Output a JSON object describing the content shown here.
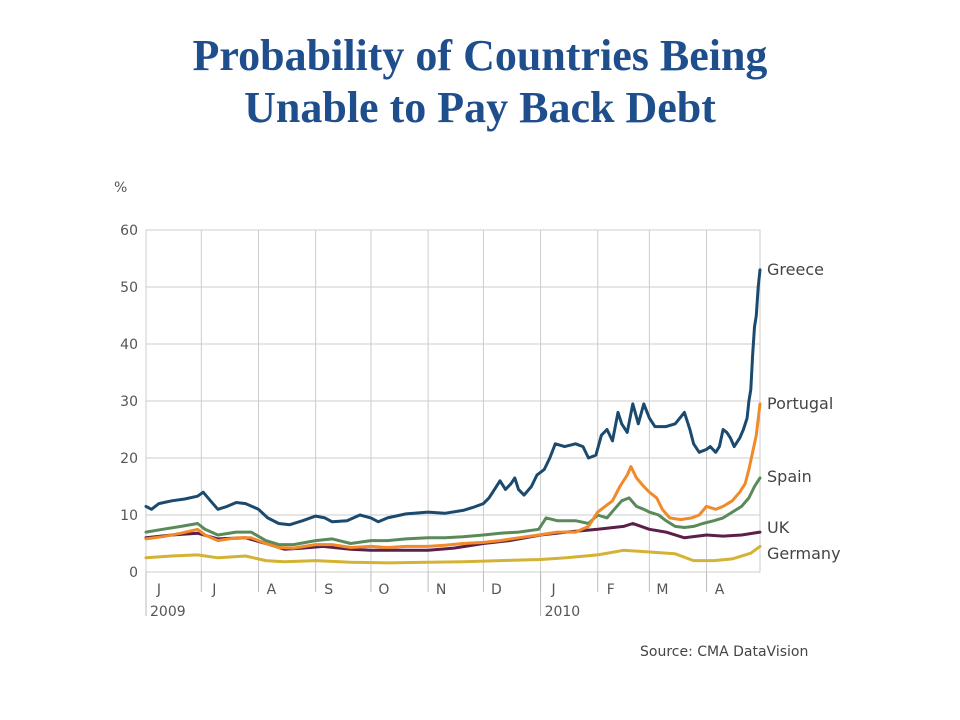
{
  "title": {
    "line1": "Probability of Countries Being",
    "line2": "Unable to Pay Back Debt"
  },
  "source": "Source: CMA DataVision",
  "chart_data": {
    "type": "line",
    "ylabel": "%",
    "ylim": [
      0,
      60
    ],
    "yticks": [
      0,
      10,
      20,
      30,
      40,
      50,
      60
    ],
    "xlim": [
      "2009-06-01",
      "2010-04-30"
    ],
    "xticks": [
      {
        "date": "2009-06-01",
        "label": "J"
      },
      {
        "date": "2009-07-01",
        "label": "J"
      },
      {
        "date": "2009-08-01",
        "label": "A"
      },
      {
        "date": "2009-09-01",
        "label": "S"
      },
      {
        "date": "2009-10-01",
        "label": "O"
      },
      {
        "date": "2009-11-01",
        "label": "N"
      },
      {
        "date": "2009-12-01",
        "label": "D"
      },
      {
        "date": "2010-01-01",
        "label": "J"
      },
      {
        "date": "2010-02-01",
        "label": "F"
      },
      {
        "date": "2010-03-01",
        "label": "M"
      },
      {
        "date": "2010-04-01",
        "label": "A"
      }
    ],
    "year_labels": [
      {
        "date": "2009-06-01",
        "label": "2009"
      },
      {
        "date": "2010-01-01",
        "label": "2010"
      }
    ],
    "grid": true,
    "legend": "labels at right end of lines",
    "series": [
      {
        "name": "Greece",
        "color": "#1b4a6e",
        "points": [
          [
            "2009-06-01",
            11.5
          ],
          [
            "2009-06-04",
            11
          ],
          [
            "2009-06-08",
            12
          ],
          [
            "2009-06-15",
            12.5
          ],
          [
            "2009-06-22",
            12.8
          ],
          [
            "2009-06-29",
            13.3
          ],
          [
            "2009-07-02",
            14
          ],
          [
            "2009-07-06",
            12.5
          ],
          [
            "2009-07-10",
            11
          ],
          [
            "2009-07-15",
            11.5
          ],
          [
            "2009-07-20",
            12.2
          ],
          [
            "2009-07-25",
            12
          ],
          [
            "2009-08-01",
            11
          ],
          [
            "2009-08-06",
            9.5
          ],
          [
            "2009-08-12",
            8.5
          ],
          [
            "2009-08-18",
            8.3
          ],
          [
            "2009-08-25",
            9
          ],
          [
            "2009-09-01",
            9.8
          ],
          [
            "2009-09-06",
            9.5
          ],
          [
            "2009-09-10",
            8.8
          ],
          [
            "2009-09-18",
            9
          ],
          [
            "2009-09-25",
            10
          ],
          [
            "2009-10-01",
            9.5
          ],
          [
            "2009-10-05",
            8.8
          ],
          [
            "2009-10-10",
            9.5
          ],
          [
            "2009-10-20",
            10.2
          ],
          [
            "2009-11-01",
            10.5
          ],
          [
            "2009-11-10",
            10.3
          ],
          [
            "2009-11-20",
            10.8
          ],
          [
            "2009-11-25",
            11.3
          ],
          [
            "2009-12-01",
            12
          ],
          [
            "2009-12-04",
            13
          ],
          [
            "2009-12-07",
            14.5
          ],
          [
            "2009-12-10",
            16
          ],
          [
            "2009-12-13",
            14.5
          ],
          [
            "2009-12-16",
            15.5
          ],
          [
            "2009-12-18",
            16.5
          ],
          [
            "2009-12-20",
            14.5
          ],
          [
            "2009-12-23",
            13.5
          ],
          [
            "2009-12-27",
            15
          ],
          [
            "2009-12-30",
            17
          ],
          [
            "2010-01-03",
            18
          ],
          [
            "2010-01-06",
            20
          ],
          [
            "2010-01-09",
            22.5
          ],
          [
            "2010-01-14",
            22
          ],
          [
            "2010-01-20",
            22.5
          ],
          [
            "2010-01-24",
            22
          ],
          [
            "2010-01-27",
            20
          ],
          [
            "2010-01-31",
            20.5
          ],
          [
            "2010-02-03",
            24
          ],
          [
            "2010-02-06",
            25
          ],
          [
            "2010-02-09",
            23
          ],
          [
            "2010-02-12",
            28
          ],
          [
            "2010-02-14",
            26
          ],
          [
            "2010-02-17",
            24.5
          ],
          [
            "2010-02-20",
            29.5
          ],
          [
            "2010-02-23",
            26
          ],
          [
            "2010-02-26",
            29.5
          ],
          [
            "2010-03-01",
            27
          ],
          [
            "2010-03-04",
            25.5
          ],
          [
            "2010-03-10",
            25.5
          ],
          [
            "2010-03-15",
            26
          ],
          [
            "2010-03-20",
            28
          ],
          [
            "2010-03-23",
            25
          ],
          [
            "2010-03-25",
            22.5
          ],
          [
            "2010-03-28",
            21
          ],
          [
            "2010-04-01",
            21.5
          ],
          [
            "2010-04-03",
            22
          ],
          [
            "2010-04-06",
            21
          ],
          [
            "2010-04-08",
            22
          ],
          [
            "2010-04-10",
            25
          ],
          [
            "2010-04-12",
            24.5
          ],
          [
            "2010-04-14",
            23.5
          ],
          [
            "2010-04-16",
            22
          ],
          [
            "2010-04-19",
            23.5
          ],
          [
            "2010-04-21",
            25
          ],
          [
            "2010-04-23",
            27
          ],
          [
            "2010-04-24",
            30
          ],
          [
            "2010-04-25",
            32
          ],
          [
            "2010-04-26",
            38
          ],
          [
            "2010-04-27",
            43
          ],
          [
            "2010-04-28",
            45
          ],
          [
            "2010-04-29",
            50
          ],
          [
            "2010-04-30",
            53
          ]
        ]
      },
      {
        "name": "Portugal",
        "color": "#f08a2a",
        "points": [
          [
            "2009-06-01",
            5.8
          ],
          [
            "2009-06-10",
            6.2
          ],
          [
            "2009-06-20",
            6.8
          ],
          [
            "2009-06-29",
            7.5
          ],
          [
            "2009-07-03",
            6.5
          ],
          [
            "2009-07-10",
            5.5
          ],
          [
            "2009-07-20",
            6
          ],
          [
            "2009-07-28",
            6
          ],
          [
            "2009-08-05",
            5
          ],
          [
            "2009-08-12",
            4.3
          ],
          [
            "2009-08-20",
            4.2
          ],
          [
            "2009-09-01",
            4.8
          ],
          [
            "2009-09-10",
            4.8
          ],
          [
            "2009-09-20",
            4.3
          ],
          [
            "2009-10-01",
            4.5
          ],
          [
            "2009-10-10",
            4.3
          ],
          [
            "2009-10-20",
            4.5
          ],
          [
            "2009-11-01",
            4.5
          ],
          [
            "2009-11-10",
            4.7
          ],
          [
            "2009-11-20",
            5
          ],
          [
            "2009-12-01",
            5.2
          ],
          [
            "2009-12-10",
            5.5
          ],
          [
            "2009-12-20",
            6
          ],
          [
            "2009-12-31",
            6.5
          ],
          [
            "2010-01-10",
            7
          ],
          [
            "2010-01-20",
            7
          ],
          [
            "2010-01-27",
            8
          ],
          [
            "2010-02-01",
            10.5
          ],
          [
            "2010-02-05",
            11.5
          ],
          [
            "2010-02-09",
            12.5
          ],
          [
            "2010-02-13",
            15
          ],
          [
            "2010-02-17",
            17
          ],
          [
            "2010-02-19",
            18.5
          ],
          [
            "2010-02-22",
            16.5
          ],
          [
            "2010-02-26",
            15
          ],
          [
            "2010-03-01",
            14
          ],
          [
            "2010-03-05",
            13
          ],
          [
            "2010-03-08",
            11
          ],
          [
            "2010-03-12",
            9.5
          ],
          [
            "2010-03-18",
            9.2
          ],
          [
            "2010-03-24",
            9.5
          ],
          [
            "2010-03-28",
            10
          ],
          [
            "2010-04-01",
            11.5
          ],
          [
            "2010-04-06",
            11
          ],
          [
            "2010-04-10",
            11.5
          ],
          [
            "2010-04-15",
            12.5
          ],
          [
            "2010-04-19",
            14
          ],
          [
            "2010-04-22",
            15.5
          ],
          [
            "2010-04-24",
            18
          ],
          [
            "2010-04-26",
            21
          ],
          [
            "2010-04-28",
            24
          ],
          [
            "2010-04-30",
            29.5
          ]
        ]
      },
      {
        "name": "Spain",
        "color": "#5a8a5a",
        "points": [
          [
            "2009-06-01",
            7
          ],
          [
            "2009-06-10",
            7.5
          ],
          [
            "2009-06-20",
            8
          ],
          [
            "2009-06-29",
            8.5
          ],
          [
            "2009-07-03",
            7.5
          ],
          [
            "2009-07-10",
            6.5
          ],
          [
            "2009-07-20",
            7
          ],
          [
            "2009-07-28",
            7
          ],
          [
            "2009-08-05",
            5.5
          ],
          [
            "2009-08-12",
            4.8
          ],
          [
            "2009-08-20",
            4.8
          ],
          [
            "2009-09-01",
            5.5
          ],
          [
            "2009-09-10",
            5.8
          ],
          [
            "2009-09-20",
            5
          ],
          [
            "2009-10-01",
            5.5
          ],
          [
            "2009-10-10",
            5.5
          ],
          [
            "2009-10-20",
            5.8
          ],
          [
            "2009-11-01",
            6
          ],
          [
            "2009-11-10",
            6
          ],
          [
            "2009-11-20",
            6.2
          ],
          [
            "2009-12-01",
            6.5
          ],
          [
            "2009-12-10",
            6.8
          ],
          [
            "2009-12-20",
            7
          ],
          [
            "2009-12-31",
            7.5
          ],
          [
            "2010-01-04",
            9.5
          ],
          [
            "2010-01-10",
            9
          ],
          [
            "2010-01-20",
            9
          ],
          [
            "2010-01-27",
            8.5
          ],
          [
            "2010-02-01",
            10
          ],
          [
            "2010-02-06",
            9.5
          ],
          [
            "2010-02-10",
            11
          ],
          [
            "2010-02-14",
            12.5
          ],
          [
            "2010-02-18",
            13
          ],
          [
            "2010-02-22",
            11.5
          ],
          [
            "2010-02-26",
            11
          ],
          [
            "2010-03-01",
            10.5
          ],
          [
            "2010-03-06",
            10
          ],
          [
            "2010-03-10",
            9
          ],
          [
            "2010-03-15",
            8
          ],
          [
            "2010-03-20",
            7.8
          ],
          [
            "2010-03-25",
            8
          ],
          [
            "2010-03-30",
            8.5
          ],
          [
            "2010-04-05",
            9
          ],
          [
            "2010-04-10",
            9.5
          ],
          [
            "2010-04-15",
            10.5
          ],
          [
            "2010-04-20",
            11.5
          ],
          [
            "2010-04-24",
            13
          ],
          [
            "2010-04-27",
            15
          ],
          [
            "2010-04-30",
            16.5
          ]
        ]
      },
      {
        "name": "UK",
        "color": "#5c1f4a",
        "points": [
          [
            "2009-06-01",
            6
          ],
          [
            "2009-06-15",
            6.5
          ],
          [
            "2009-06-29",
            6.8
          ],
          [
            "2009-07-10",
            5.8
          ],
          [
            "2009-07-25",
            6
          ],
          [
            "2009-08-05",
            5
          ],
          [
            "2009-08-15",
            4
          ],
          [
            "2009-08-25",
            4.2
          ],
          [
            "2009-09-05",
            4.5
          ],
          [
            "2009-09-20",
            4
          ],
          [
            "2009-10-01",
            3.8
          ],
          [
            "2009-10-15",
            3.8
          ],
          [
            "2009-11-01",
            3.8
          ],
          [
            "2009-11-15",
            4.2
          ],
          [
            "2009-12-01",
            5
          ],
          [
            "2009-12-15",
            5.5
          ],
          [
            "2010-01-01",
            6.5
          ],
          [
            "2010-01-15",
            7
          ],
          [
            "2010-02-01",
            7.5
          ],
          [
            "2010-02-15",
            8
          ],
          [
            "2010-02-20",
            8.5
          ],
          [
            "2010-03-01",
            7.5
          ],
          [
            "2010-03-10",
            7
          ],
          [
            "2010-03-20",
            6
          ],
          [
            "2010-04-01",
            6.5
          ],
          [
            "2010-04-10",
            6.3
          ],
          [
            "2010-04-20",
            6.5
          ],
          [
            "2010-04-30",
            7
          ]
        ]
      },
      {
        "name": "Germany",
        "color": "#d4b234",
        "points": [
          [
            "2009-06-01",
            2.5
          ],
          [
            "2009-06-15",
            2.8
          ],
          [
            "2009-06-29",
            3
          ],
          [
            "2009-07-10",
            2.5
          ],
          [
            "2009-07-25",
            2.8
          ],
          [
            "2009-08-05",
            2
          ],
          [
            "2009-08-15",
            1.8
          ],
          [
            "2009-09-01",
            2
          ],
          [
            "2009-09-20",
            1.7
          ],
          [
            "2009-10-10",
            1.6
          ],
          [
            "2009-11-01",
            1.7
          ],
          [
            "2009-11-20",
            1.8
          ],
          [
            "2009-12-10",
            2
          ],
          [
            "2010-01-01",
            2.2
          ],
          [
            "2010-01-15",
            2.5
          ],
          [
            "2010-02-01",
            3
          ],
          [
            "2010-02-15",
            3.8
          ],
          [
            "2010-03-01",
            3.5
          ],
          [
            "2010-03-15",
            3.2
          ],
          [
            "2010-03-25",
            2
          ],
          [
            "2010-04-05",
            2
          ],
          [
            "2010-04-15",
            2.3
          ],
          [
            "2010-04-25",
            3.3
          ],
          [
            "2010-04-30",
            4.5
          ]
        ]
      }
    ]
  }
}
